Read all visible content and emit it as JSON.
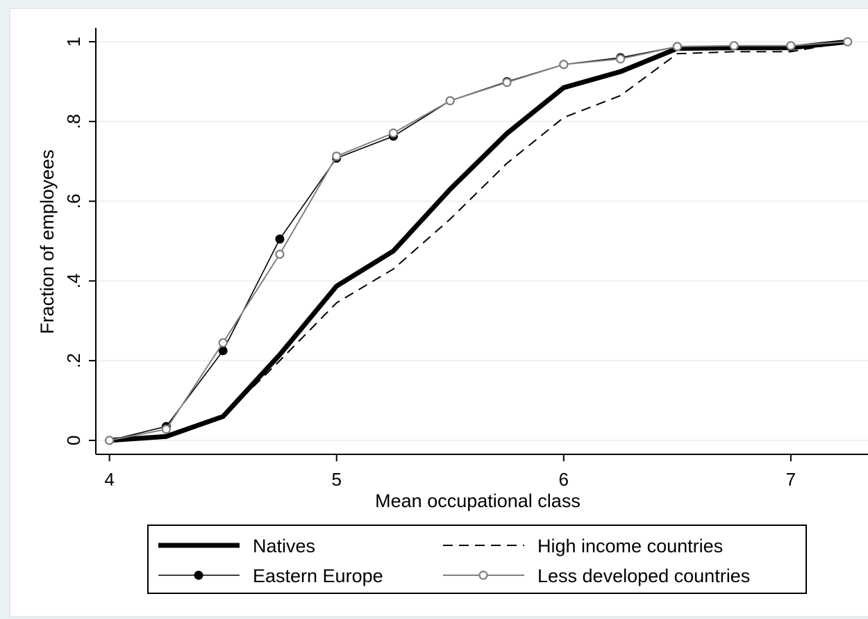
{
  "chart_data": {
    "type": "line",
    "title": "",
    "xlabel": "Mean occupational class",
    "ylabel": "Fraction of employees",
    "xlim": [
      3.94,
      7.3
    ],
    "ylim": [
      -0.035,
      1.035
    ],
    "xticks": [
      4,
      5,
      6,
      7
    ],
    "xtick_labels": [
      "4",
      "5",
      "6",
      "7"
    ],
    "yticks": [
      0,
      0.2,
      0.4,
      0.6,
      0.8,
      1
    ],
    "ytick_labels": [
      "0",
      ".2",
      ".4",
      ".6",
      ".8",
      "1"
    ],
    "grid": "horizontal",
    "legend_position": "bottom",
    "x": [
      4,
      4.25,
      4.5,
      4.75,
      5,
      5.25,
      5.5,
      5.75,
      6,
      6.25,
      6.5,
      6.75,
      7,
      7.25
    ],
    "series": [
      {
        "name": "Natives",
        "style": "thick-solid",
        "color": "#000000",
        "values": [
          0,
          0.01,
          0.06,
          0.215,
          0.387,
          0.475,
          0.63,
          0.77,
          0.885,
          0.925,
          0.983,
          0.985,
          0.985,
          1.0
        ]
      },
      {
        "name": "High income countries",
        "style": "dashed",
        "color": "#000000",
        "values": [
          0,
          0.01,
          0.06,
          0.2,
          0.345,
          0.43,
          0.555,
          0.695,
          0.81,
          0.865,
          0.97,
          0.975,
          0.975,
          1.0
        ]
      },
      {
        "name": "Eastern Europe",
        "style": "solid-filled-markers",
        "color": "#000000",
        "values": [
          0,
          0.035,
          0.225,
          0.505,
          0.708,
          0.763,
          0.852,
          0.9,
          0.943,
          0.96,
          0.988,
          0.99,
          0.988,
          1.0
        ]
      },
      {
        "name": "Less developed countries",
        "style": "solid-hollow-markers",
        "color": "#808080",
        "values": [
          0,
          0.028,
          0.245,
          0.467,
          0.713,
          0.771,
          0.852,
          0.898,
          0.943,
          0.957,
          0.988,
          0.99,
          0.99,
          1.0
        ]
      }
    ]
  }
}
